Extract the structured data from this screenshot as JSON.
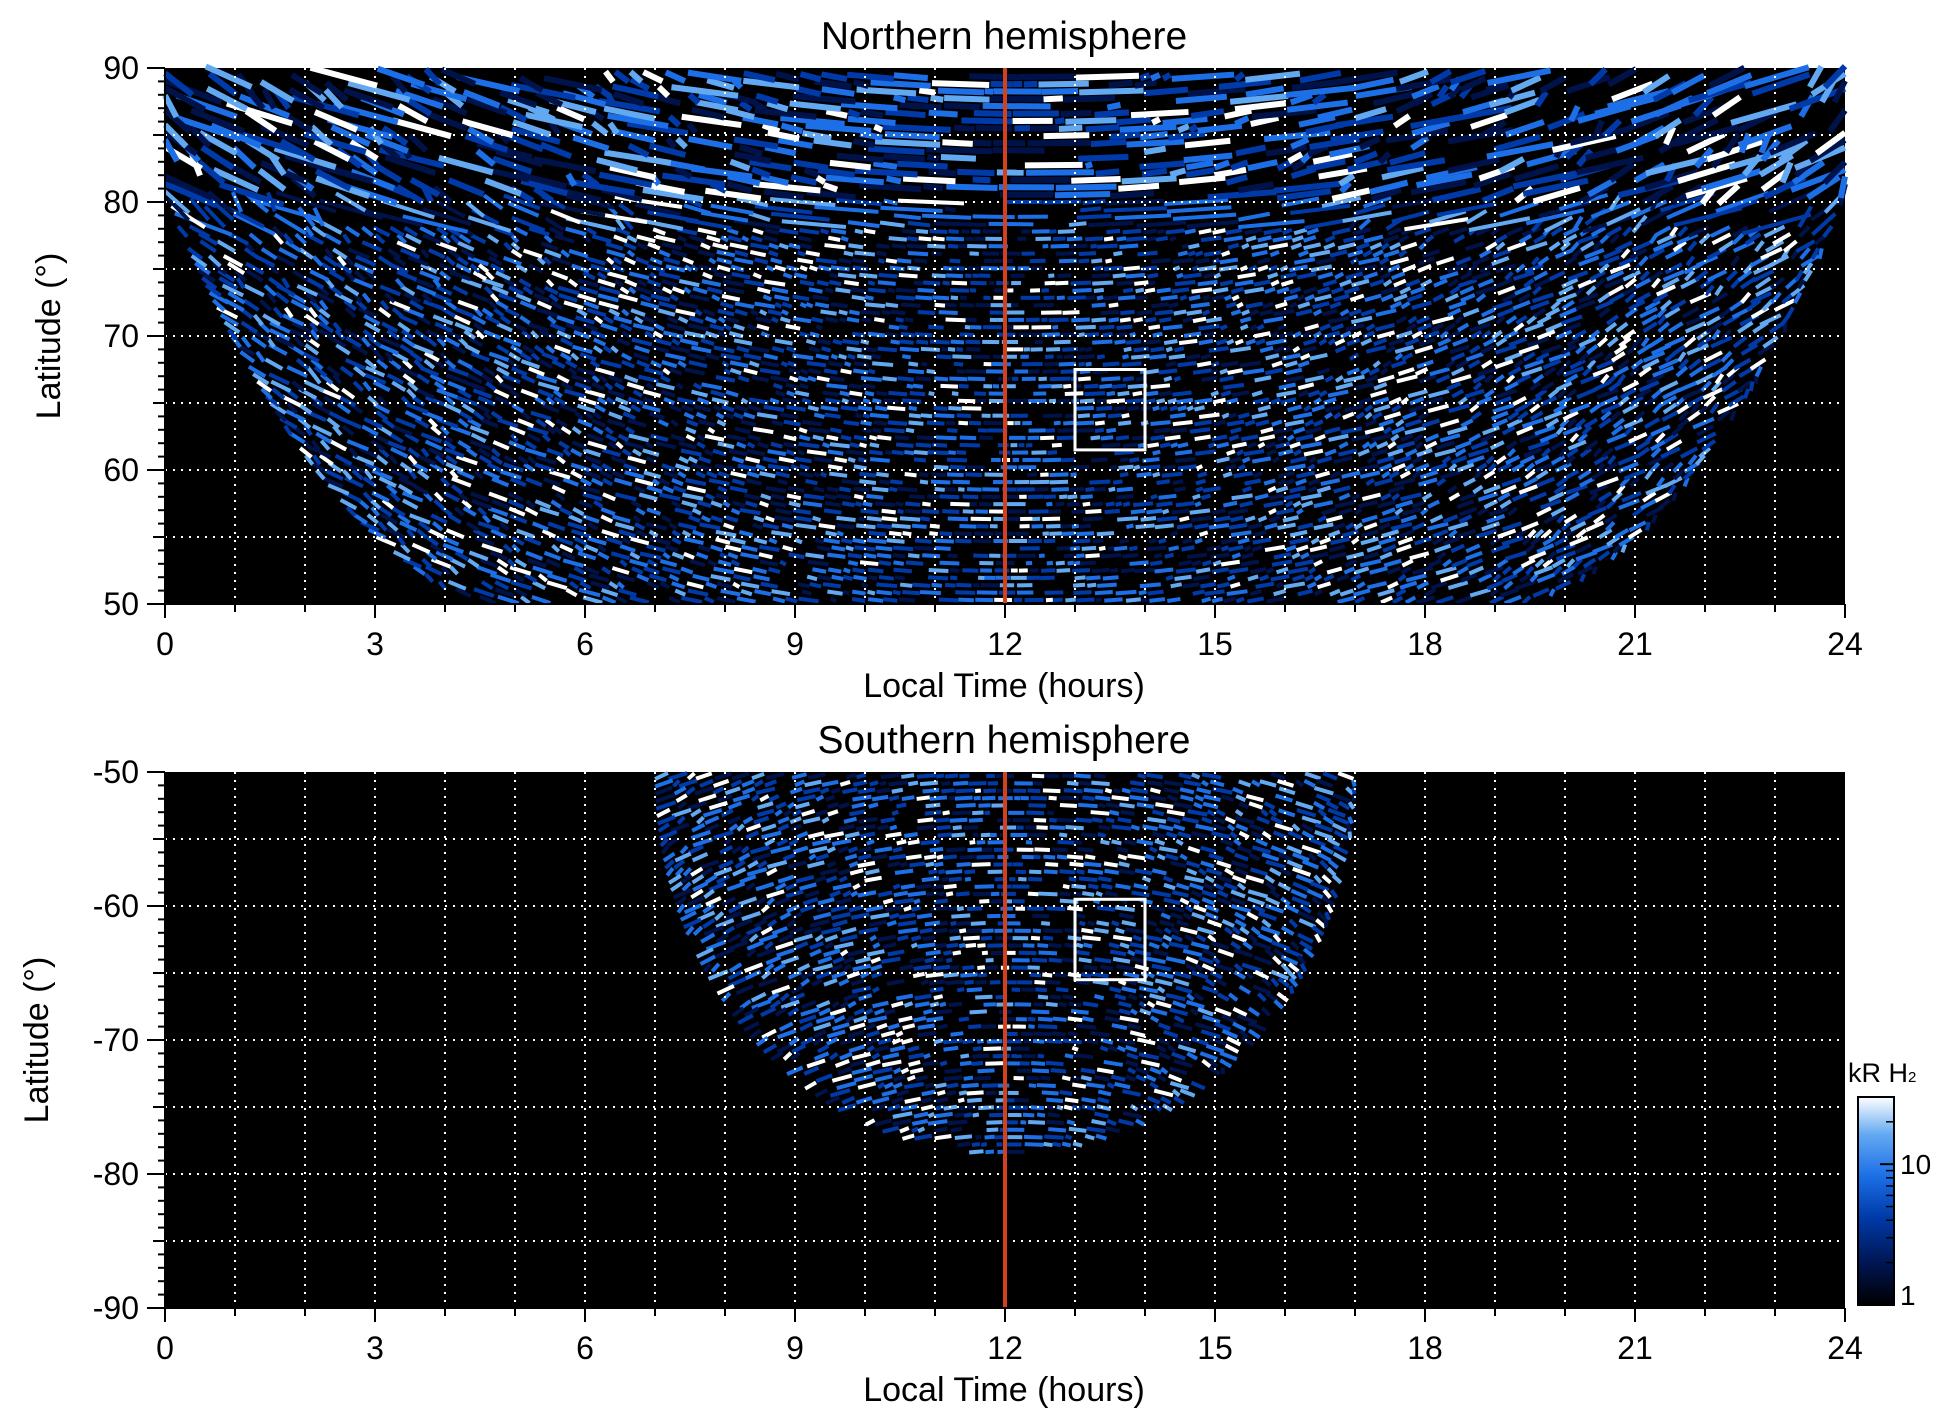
{
  "chart_data": [
    {
      "type": "heatmap",
      "title": "Northern hemisphere",
      "xlabel": "Local Time (hours)",
      "ylabel": "Latitude (°)",
      "xlim": [
        0,
        24
      ],
      "ylim": [
        50,
        90
      ],
      "x_ticks": [
        0,
        3,
        6,
        9,
        12,
        15,
        18,
        21,
        24
      ],
      "y_ticks": [
        50,
        60,
        70,
        80,
        90
      ],
      "grid": true,
      "grid_x_step_hours": 1,
      "grid_y_step_deg": 5,
      "grid_style": "white dotted",
      "marker_line": {
        "local_time": 12,
        "color": "#d2401c"
      },
      "highlight_box": {
        "local_time": [
          13,
          14
        ],
        "latitude": [
          61.5,
          67.5
        ],
        "color": "#ffffff"
      },
      "coverage": {
        "lt_min_at_50": 5,
        "lt_max_at_50": 19,
        "full_coverage_above": 80
      },
      "colorscale": [
        "#000000",
        "#00124a",
        "#003aa8",
        "#1c6fe6",
        "#63a9f2",
        "#ffffff"
      ]
    },
    {
      "type": "heatmap",
      "title": "Southern hemisphere",
      "xlabel": "Local Time (hours)",
      "ylabel": "Latitude (°)",
      "xlim": [
        0,
        24
      ],
      "ylim": [
        -90,
        -50
      ],
      "x_ticks": [
        0,
        3,
        6,
        9,
        12,
        15,
        18,
        21,
        24
      ],
      "y_ticks": [
        -90,
        -80,
        -70,
        -60,
        -50
      ],
      "grid": true,
      "grid_x_step_hours": 1,
      "grid_y_step_deg": 5,
      "grid_style": "white dotted",
      "marker_line": {
        "local_time": 12,
        "color": "#d2401c"
      },
      "highlight_box": {
        "local_time": [
          13,
          14
        ],
        "latitude": [
          -65.5,
          -59.5
        ],
        "color": "#ffffff"
      },
      "coverage": {
        "lt_min_at_50": 7,
        "lt_max_at_50": 17,
        "lowest_latitude": -78.5
      },
      "colorscale": [
        "#000000",
        "#00124a",
        "#003aa8",
        "#1c6fe6",
        "#63a9f2",
        "#ffffff"
      ]
    }
  ],
  "colorbar": {
    "label_main": "kR H",
    "label_sub": "2",
    "scale": "log",
    "range": [
      1,
      30
    ],
    "ticks": [
      1,
      10
    ],
    "tick_labels": [
      "1",
      "10"
    ],
    "colors": [
      "#000000",
      "#00124a",
      "#003aa8",
      "#1c6fe6",
      "#63a9f2",
      "#ffffff"
    ]
  }
}
